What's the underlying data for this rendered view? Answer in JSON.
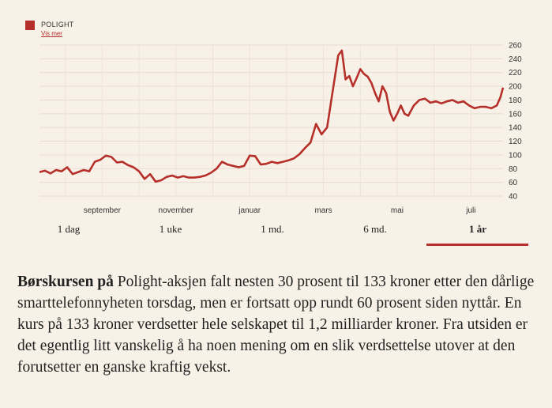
{
  "legend": {
    "series_name": "POLIGHT",
    "link_label": "Vis mer",
    "color": "#b6302b"
  },
  "tabs": [
    {
      "label": "1 dag",
      "active": false
    },
    {
      "label": "1 uke",
      "active": false
    },
    {
      "label": "1 md.",
      "active": false
    },
    {
      "label": "6 md.",
      "active": false
    },
    {
      "label": "1 år",
      "active": true
    }
  ],
  "article": {
    "lead": "Børskursen på",
    "body": " Polight-aksjen falt nesten 30 prosent til 133 kroner etter den dårlige smarttelefonnyheten torsdag, men er fortsatt opp rundt 60 prosent siden nyttår. En kurs på 133 kroner verdsetter hele selskapet til 1,2 milliarder kroner. Fra utsiden er det egentlig litt vanskelig å ha noen mening om en slik verdsettelse utover at den forutsetter en ganske kraftig vekst."
  },
  "chart_data": {
    "type": "line",
    "title": "",
    "xlabel": "",
    "ylabel": "",
    "ylim": [
      40,
      260
    ],
    "yticks": [
      40,
      60,
      80,
      100,
      120,
      140,
      160,
      180,
      200,
      220,
      240,
      260
    ],
    "x_tick_labels": [
      "september",
      "november",
      "januar",
      "mars",
      "mai",
      "juli"
    ],
    "x_tick_positions": [
      1.7,
      3.7,
      5.7,
      7.7,
      9.7,
      11.7
    ],
    "grid": true,
    "line_color": "#b6302b",
    "series": [
      {
        "name": "POLIGHT",
        "x": [
          0.0,
          0.15,
          0.3,
          0.45,
          0.6,
          0.75,
          0.9,
          1.05,
          1.2,
          1.35,
          1.5,
          1.65,
          1.8,
          1.95,
          2.1,
          2.25,
          2.4,
          2.55,
          2.7,
          2.85,
          3.0,
          3.15,
          3.3,
          3.45,
          3.6,
          3.75,
          3.9,
          4.05,
          4.2,
          4.35,
          4.5,
          4.65,
          4.8,
          4.95,
          5.1,
          5.25,
          5.4,
          5.55,
          5.7,
          5.85,
          6.0,
          6.15,
          6.3,
          6.45,
          6.6,
          6.75,
          6.9,
          7.05,
          7.2,
          7.35,
          7.5,
          7.65,
          7.8,
          7.9,
          8.0,
          8.1,
          8.2,
          8.3,
          8.4,
          8.5,
          8.6,
          8.7,
          8.8,
          8.9,
          9.0,
          9.1,
          9.2,
          9.3,
          9.4,
          9.5,
          9.6,
          9.7,
          9.8,
          9.9,
          10.0,
          10.15,
          10.3,
          10.45,
          10.6,
          10.75,
          10.9,
          11.05,
          11.2,
          11.35,
          11.5,
          11.65,
          11.8,
          11.95,
          12.1,
          12.25,
          12.4,
          12.5,
          12.57
        ],
        "values": [
          75,
          77,
          73,
          78,
          76,
          82,
          72,
          75,
          78,
          76,
          90,
          93,
          99,
          97,
          89,
          90,
          85,
          82,
          76,
          65,
          72,
          61,
          63,
          68,
          70,
          67,
          69,
          67,
          67,
          68,
          70,
          74,
          80,
          90,
          86,
          84,
          82,
          84,
          99,
          98,
          86,
          87,
          90,
          88,
          90,
          92,
          95,
          101,
          110,
          118,
          145,
          130,
          140,
          175,
          210,
          245,
          252,
          210,
          215,
          200,
          212,
          225,
          218,
          214,
          205,
          190,
          178,
          200,
          190,
          163,
          150,
          160,
          172,
          160,
          157,
          172,
          180,
          182,
          176,
          178,
          175,
          178,
          180,
          176,
          178,
          172,
          168,
          170,
          170,
          168,
          172,
          184,
          198
        ]
      }
    ]
  }
}
